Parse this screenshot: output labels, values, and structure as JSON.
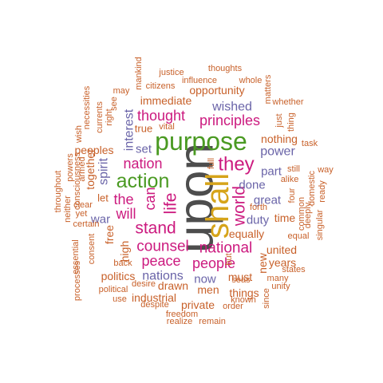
{
  "word_cloud": {
    "colors": {
      "gray": "#4d4d4d",
      "green": "#4a9a22",
      "gold": "#d6a41a",
      "magenta": "#cc1a7f",
      "purple": "#6a64a8",
      "orange": "#c8612a"
    },
    "words": [
      {
        "text": "upon",
        "color": "gray",
        "weight": 10
      },
      {
        "text": "purpose",
        "color": "green",
        "weight": 8
      },
      {
        "text": "shall",
        "color": "gold",
        "weight": 8
      },
      {
        "text": "action",
        "color": "green",
        "weight": 6
      },
      {
        "text": "they",
        "color": "magenta",
        "weight": 6
      },
      {
        "text": "stand",
        "color": "magenta",
        "weight": 5
      },
      {
        "text": "life",
        "color": "magenta",
        "weight": 5
      },
      {
        "text": "world",
        "color": "magenta",
        "weight": 5
      },
      {
        "text": "counsel",
        "color": "magenta",
        "weight": 5
      },
      {
        "text": "national",
        "color": "magenta",
        "weight": 5
      },
      {
        "text": "principles",
        "color": "magenta",
        "weight": 5
      },
      {
        "text": "nation",
        "color": "magenta",
        "weight": 5
      },
      {
        "text": "thought",
        "color": "magenta",
        "weight": 5
      },
      {
        "text": "people",
        "color": "magenta",
        "weight": 5
      },
      {
        "text": "peace",
        "color": "magenta",
        "weight": 5
      },
      {
        "text": "the",
        "color": "magenta",
        "weight": 5
      },
      {
        "text": "will",
        "color": "magenta",
        "weight": 5
      },
      {
        "text": "can",
        "color": "magenta",
        "weight": 5
      },
      {
        "text": "wished",
        "color": "purple",
        "weight": 4
      },
      {
        "text": "interest",
        "color": "purple",
        "weight": 4
      },
      {
        "text": "spirit",
        "color": "purple",
        "weight": 4
      },
      {
        "text": "set",
        "color": "purple",
        "weight": 4
      },
      {
        "text": "power",
        "color": "purple",
        "weight": 4
      },
      {
        "text": "part",
        "color": "purple",
        "weight": 4
      },
      {
        "text": "done",
        "color": "purple",
        "weight": 4
      },
      {
        "text": "great",
        "color": "purple",
        "weight": 4
      },
      {
        "text": "duty",
        "color": "purple",
        "weight": 4
      },
      {
        "text": "war",
        "color": "purple",
        "weight": 4
      },
      {
        "text": "nations",
        "color": "purple",
        "weight": 4
      },
      {
        "text": "now",
        "color": "purple",
        "weight": 4
      },
      {
        "text": "immediate",
        "color": "orange",
        "weight": 3
      },
      {
        "text": "opportunity",
        "color": "orange",
        "weight": 3
      },
      {
        "text": "nothing",
        "color": "orange",
        "weight": 3
      },
      {
        "text": "equally",
        "color": "orange",
        "weight": 3
      },
      {
        "text": "united",
        "color": "orange",
        "weight": 3
      },
      {
        "text": "years",
        "color": "orange",
        "weight": 3
      },
      {
        "text": "time",
        "color": "orange",
        "weight": 3
      },
      {
        "text": "new",
        "color": "orange",
        "weight": 3
      },
      {
        "text": "must",
        "color": "orange",
        "weight": 3
      },
      {
        "text": "men",
        "color": "orange",
        "weight": 3
      },
      {
        "text": "things",
        "color": "orange",
        "weight": 3
      },
      {
        "text": "industrial",
        "color": "orange",
        "weight": 3
      },
      {
        "text": "drawn",
        "color": "orange",
        "weight": 3
      },
      {
        "text": "private",
        "color": "orange",
        "weight": 3
      },
      {
        "text": "politics",
        "color": "orange",
        "weight": 3
      },
      {
        "text": "free",
        "color": "orange",
        "weight": 3
      },
      {
        "text": "high",
        "color": "orange",
        "weight": 3
      },
      {
        "text": "together",
        "color": "orange",
        "weight": 3
      },
      {
        "text": "peoples",
        "color": "orange",
        "weight": 3
      },
      {
        "text": "true",
        "color": "orange",
        "weight": 3
      },
      {
        "text": "let",
        "color": "orange",
        "weight": 3
      },
      {
        "text": "justice",
        "color": "orange",
        "weight": 2
      },
      {
        "text": "thoughts",
        "color": "orange",
        "weight": 2
      },
      {
        "text": "influence",
        "color": "orange",
        "weight": 2
      },
      {
        "text": "whole",
        "color": "orange",
        "weight": 2
      },
      {
        "text": "citizens",
        "color": "orange",
        "weight": 2
      },
      {
        "text": "mankind",
        "color": "orange",
        "weight": 2
      },
      {
        "text": "may",
        "color": "orange",
        "weight": 2
      },
      {
        "text": "matters",
        "color": "orange",
        "weight": 2
      },
      {
        "text": "whether",
        "color": "orange",
        "weight": 2
      },
      {
        "text": "necessities",
        "color": "orange",
        "weight": 2
      },
      {
        "text": "currents",
        "color": "orange",
        "weight": 2
      },
      {
        "text": "right",
        "color": "orange",
        "weight": 2
      },
      {
        "text": "see",
        "color": "orange",
        "weight": 2
      },
      {
        "text": "vital",
        "color": "orange",
        "weight": 2
      },
      {
        "text": "wish",
        "color": "orange",
        "weight": 2
      },
      {
        "text": "just",
        "color": "orange",
        "weight": 2
      },
      {
        "text": "thing",
        "color": "orange",
        "weight": 2
      },
      {
        "text": "task",
        "color": "orange",
        "weight": 2
      },
      {
        "text": "throughout",
        "color": "orange",
        "weight": 2
      },
      {
        "text": "powers",
        "color": "orange",
        "weight": 2
      },
      {
        "text": "neither",
        "color": "orange",
        "weight": 2
      },
      {
        "text": "consciousness",
        "color": "orange",
        "weight": 2
      },
      {
        "text": "armed",
        "color": "orange",
        "weight": 2
      },
      {
        "text": "full",
        "color": "orange",
        "weight": 2
      },
      {
        "text": "still",
        "color": "orange",
        "weight": 2
      },
      {
        "text": "alike",
        "color": "orange",
        "weight": 2
      },
      {
        "text": "way",
        "color": "orange",
        "weight": 2
      },
      {
        "text": "domestic",
        "color": "orange",
        "weight": 2
      },
      {
        "text": "ready",
        "color": "orange",
        "weight": 2
      },
      {
        "text": "four",
        "color": "orange",
        "weight": 2
      },
      {
        "text": "common",
        "color": "orange",
        "weight": 2
      },
      {
        "text": "deeply",
        "color": "orange",
        "weight": 2
      },
      {
        "text": "singular",
        "color": "orange",
        "weight": 2
      },
      {
        "text": "clear",
        "color": "orange",
        "weight": 2
      },
      {
        "text": "yet",
        "color": "orange",
        "weight": 2
      },
      {
        "text": "certain",
        "color": "orange",
        "weight": 2
      },
      {
        "text": "forth",
        "color": "orange",
        "weight": 2
      },
      {
        "text": "equal",
        "color": "orange",
        "weight": 2
      },
      {
        "text": "essential",
        "color": "orange",
        "weight": 2
      },
      {
        "text": "consent",
        "color": "orange",
        "weight": 2
      },
      {
        "text": "processes",
        "color": "orange",
        "weight": 2
      },
      {
        "text": "back",
        "color": "orange",
        "weight": 2
      },
      {
        "text": "but",
        "color": "orange",
        "weight": 2
      },
      {
        "text": "seas",
        "color": "orange",
        "weight": 2
      },
      {
        "text": "states",
        "color": "orange",
        "weight": 2
      },
      {
        "text": "many",
        "color": "orange",
        "weight": 2
      },
      {
        "text": "unity",
        "color": "orange",
        "weight": 2
      },
      {
        "text": "political",
        "color": "orange",
        "weight": 2
      },
      {
        "text": "desire",
        "color": "orange",
        "weight": 2
      },
      {
        "text": "known",
        "color": "orange",
        "weight": 2
      },
      {
        "text": "use",
        "color": "orange",
        "weight": 2
      },
      {
        "text": "despite",
        "color": "orange",
        "weight": 2
      },
      {
        "text": "order",
        "color": "orange",
        "weight": 2
      },
      {
        "text": "since",
        "color": "orange",
        "weight": 2
      },
      {
        "text": "freedom",
        "color": "orange",
        "weight": 2
      },
      {
        "text": "realize",
        "color": "orange",
        "weight": 2
      },
      {
        "text": "remain",
        "color": "orange",
        "weight": 2
      }
    ]
  }
}
